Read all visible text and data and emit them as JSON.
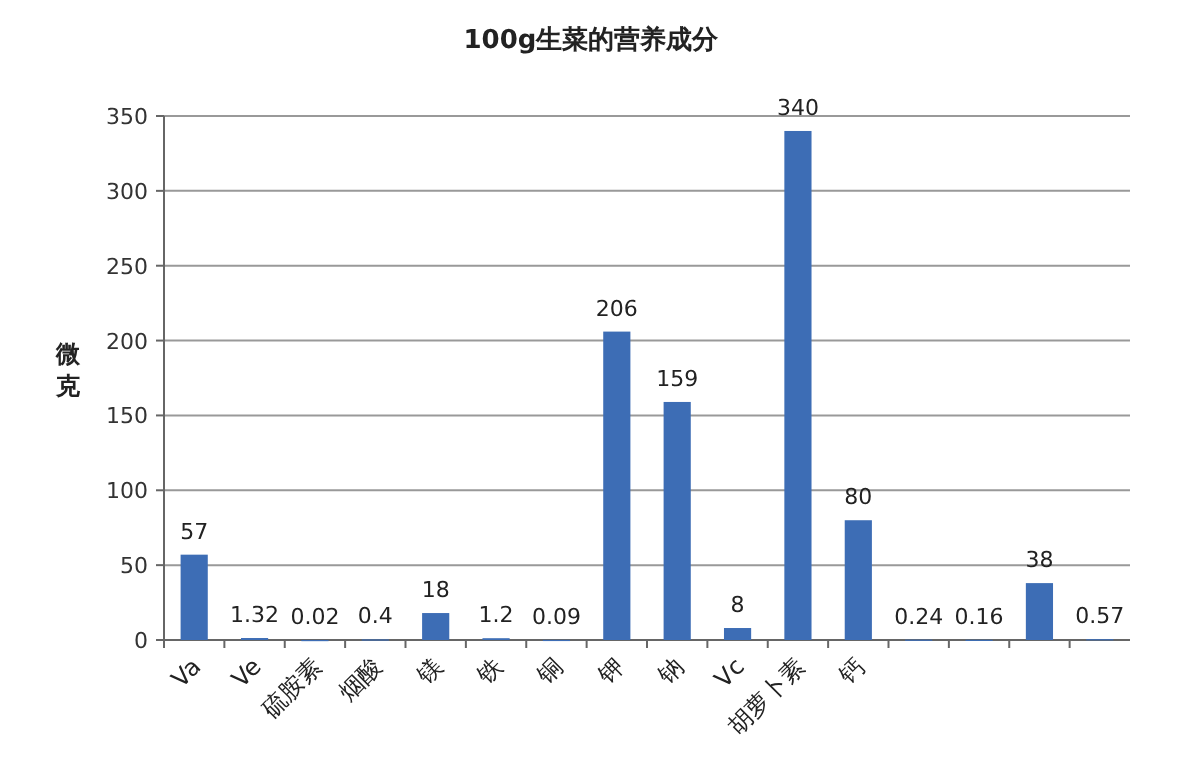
{
  "chart_data": {
    "type": "bar",
    "title": "100g生菜的营养成分",
    "ylabel": "微克",
    "categories": [
      "Va",
      "Ve",
      "硫胺素",
      "烟酸",
      "镁",
      "铁",
      "铜",
      "钾",
      "钠",
      "Vc",
      "胡萝卜素",
      "钙",
      null,
      null,
      null,
      null
    ],
    "values": [
      57,
      1.32,
      0.02,
      0.4,
      18,
      1.2,
      0.09,
      206,
      159,
      8,
      340,
      80,
      0.24,
      0.16,
      38,
      0.57
    ],
    "color": "#3d6db5",
    "data_labels": true,
    "ylim": [
      0,
      350
    ],
    "yticks": [
      0,
      50,
      100,
      150,
      200,
      250,
      300,
      350
    ],
    "grid": "y"
  }
}
